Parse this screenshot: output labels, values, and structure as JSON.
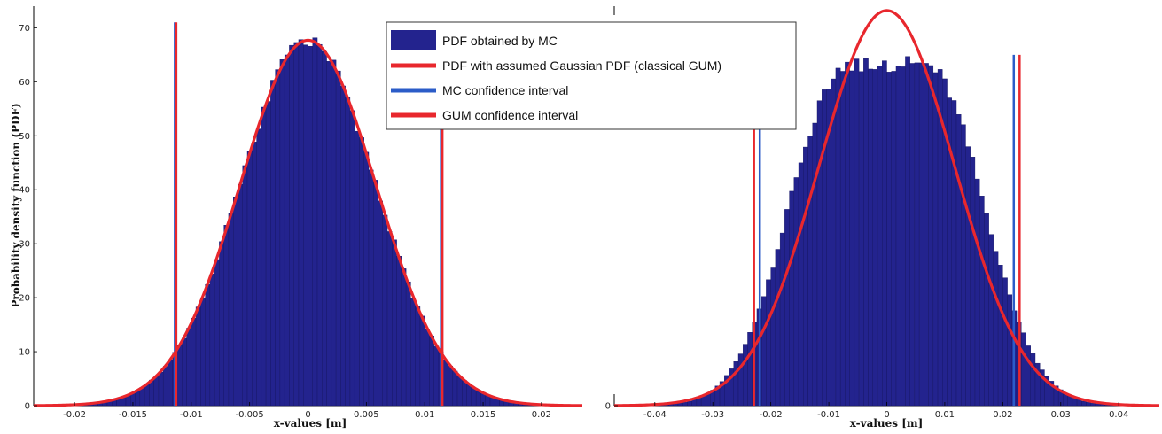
{
  "legend": {
    "entries": [
      {
        "label": "PDF obtained by MC",
        "color": "#23238e",
        "kind": "patch"
      },
      {
        "label": "PDF with assumed Gaussian PDF (classical GUM)",
        "color": "#e8272d",
        "kind": "line"
      },
      {
        "label": "MC confidence interval",
        "color": "#2b5cc8",
        "kind": "line"
      },
      {
        "label": "GUM confidence interval",
        "color": "#e8272d",
        "kind": "line"
      }
    ]
  },
  "chart_data": [
    {
      "type": "bar",
      "panel": "left",
      "xlabel": "x-values [m]",
      "ylabel": "Probability density function (PDF)",
      "xlim": [
        -0.0235,
        0.0235
      ],
      "ylim": [
        0,
        74
      ],
      "xticks": [
        -0.02,
        -0.015,
        -0.01,
        -0.005,
        0,
        0.005,
        0.01,
        0.015,
        0.02
      ],
      "xtick_labels": [
        "-0.02",
        "-0.015",
        "-0.01",
        "-0.005",
        "0",
        "0.005",
        "0.01",
        "0.015",
        "0.02"
      ],
      "yticks": [
        0,
        10,
        20,
        30,
        40,
        50,
        60,
        70
      ],
      "ytick_labels": [
        "0",
        "10",
        "20",
        "30",
        "40",
        "50",
        "60",
        "70"
      ],
      "histogram": {
        "bin_width": 0.0004,
        "sigma": 0.0058,
        "peak": 67.7,
        "color": "#23238e"
      },
      "gaussian": {
        "mean": 0,
        "sigma": 0.0058,
        "peak": 67.7,
        "color": "#e8272d"
      },
      "mc_interval": [
        -0.0114,
        0.0114
      ],
      "gum_interval": [
        -0.0114,
        0.0114
      ],
      "interval_line_top": 71
    },
    {
      "type": "bar",
      "panel": "right",
      "xlabel": "x-values [m]",
      "xlim": [
        -0.047,
        0.047
      ],
      "ylim": [
        0,
        74
      ],
      "xticks": [
        -0.04,
        -0.03,
        -0.02,
        -0.01,
        0,
        0.01,
        0.02,
        0.03,
        0.04
      ],
      "xtick_labels": [
        "-0.04",
        "-0.03",
        "-0.02",
        "-0.01",
        "0",
        "0.01",
        "0.02",
        "0.03",
        "0.04"
      ],
      "yticks": [
        0
      ],
      "ytick_labels": [
        "0"
      ],
      "histogram": {
        "bin_width": 0.0008,
        "peak": 63.3,
        "plateau_half_width": 0.006,
        "sigma": 0.0105,
        "color": "#23238e"
      },
      "gaussian": {
        "mean": 0,
        "sigma": 0.0117,
        "peak": 73.2,
        "color": "#e8272d"
      },
      "mc_interval": [
        -0.0219,
        0.0219
      ],
      "gum_interval": [
        -0.0229,
        0.0229
      ],
      "interval_line_top": 65
    }
  ]
}
